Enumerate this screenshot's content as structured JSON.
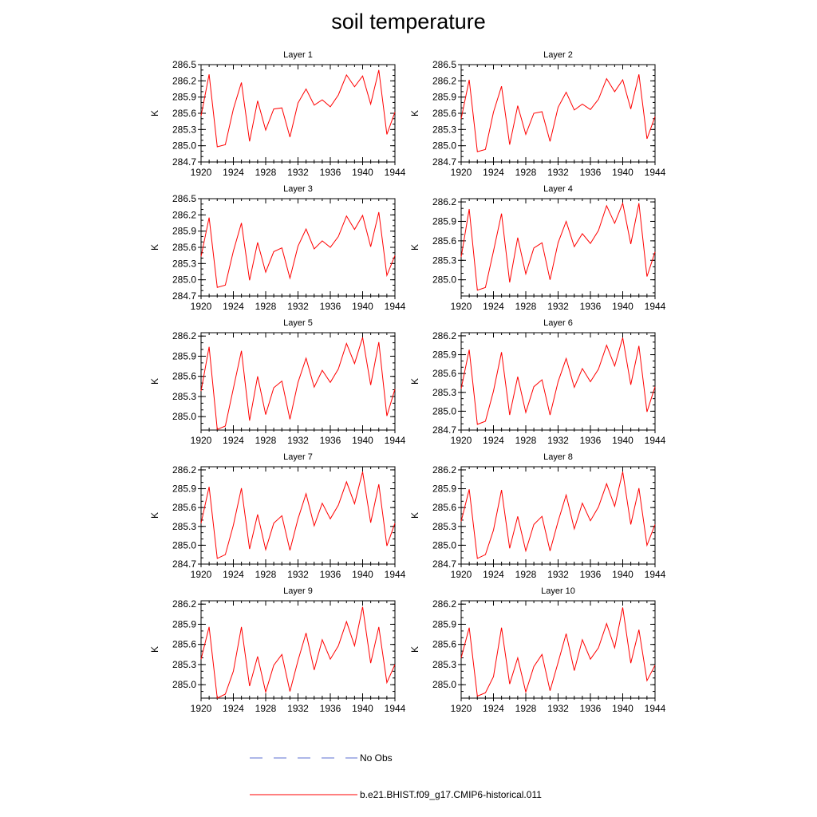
{
  "title": "soil temperature",
  "x_tick_labels": [
    "1920",
    "1924",
    "1928",
    "1932",
    "1936",
    "1940",
    "1944"
  ],
  "legend": {
    "obs_label": "No Obs",
    "model_label": "b.e21.BHIST.f09_g17.CMIP6-historical.011",
    "obs_color": "#5b6fd0",
    "model_color": "#ff0000"
  },
  "chart_data": [
    {
      "type": "line",
      "title": "Layer 1",
      "ylabel": "K",
      "xlim": [
        1920,
        1944
      ],
      "ylim": [
        284.7,
        286.5
      ],
      "yticks": [
        284.7,
        285.0,
        285.3,
        285.6,
        285.9,
        286.2,
        286.5
      ],
      "x": [
        1920,
        1921,
        1922,
        1923,
        1924,
        1925,
        1926,
        1927,
        1928,
        1929,
        1930,
        1931,
        1932,
        1933,
        1934,
        1935,
        1936,
        1937,
        1938,
        1939,
        1940,
        1941,
        1942,
        1943,
        1944
      ],
      "series": [
        {
          "name": "b.e21.BHIST.f09_g17.CMIP6-historical.011",
          "values": [
            285.55,
            286.32,
            284.98,
            285.02,
            285.68,
            286.17,
            285.08,
            285.83,
            285.29,
            285.68,
            285.7,
            285.16,
            285.79,
            286.05,
            285.75,
            285.85,
            285.72,
            285.94,
            286.31,
            286.09,
            286.29,
            285.77,
            286.4,
            285.21,
            285.62
          ]
        }
      ]
    },
    {
      "type": "line",
      "title": "Layer 2",
      "ylabel": "K",
      "xlim": [
        1920,
        1944
      ],
      "ylim": [
        284.7,
        286.5
      ],
      "yticks": [
        284.7,
        285.0,
        285.3,
        285.6,
        285.9,
        286.2,
        286.5
      ],
      "x": [
        1920,
        1921,
        1922,
        1923,
        1924,
        1925,
        1926,
        1927,
        1928,
        1929,
        1930,
        1931,
        1932,
        1933,
        1934,
        1935,
        1936,
        1937,
        1938,
        1939,
        1940,
        1941,
        1942,
        1943,
        1944
      ],
      "series": [
        {
          "name": "b.e21.BHIST.f09_g17.CMIP6-historical.011",
          "values": [
            285.5,
            286.22,
            284.89,
            284.93,
            285.62,
            286.1,
            285.02,
            285.74,
            285.21,
            285.6,
            285.63,
            285.08,
            285.71,
            285.99,
            285.66,
            285.77,
            285.67,
            285.86,
            286.24,
            286.0,
            286.22,
            285.68,
            286.32,
            285.13,
            285.54
          ]
        }
      ]
    },
    {
      "type": "line",
      "title": "Layer 3",
      "ylabel": "K",
      "xlim": [
        1920,
        1944
      ],
      "ylim": [
        284.7,
        286.5
      ],
      "yticks": [
        284.7,
        285.0,
        285.3,
        285.6,
        285.9,
        286.2,
        286.5
      ],
      "x": [
        1920,
        1921,
        1922,
        1923,
        1924,
        1925,
        1926,
        1927,
        1928,
        1929,
        1930,
        1931,
        1932,
        1933,
        1934,
        1935,
        1936,
        1937,
        1938,
        1939,
        1940,
        1941,
        1942,
        1943,
        1944
      ],
      "series": [
        {
          "name": "b.e21.BHIST.f09_g17.CMIP6-historical.011",
          "values": [
            285.43,
            286.15,
            284.86,
            284.9,
            285.53,
            286.05,
            284.99,
            285.69,
            285.14,
            285.52,
            285.59,
            285.03,
            285.62,
            285.94,
            285.57,
            285.72,
            285.6,
            285.8,
            286.18,
            285.93,
            286.19,
            285.61,
            286.25,
            285.08,
            285.45
          ]
        }
      ]
    },
    {
      "type": "line",
      "title": "Layer 4",
      "ylabel": "K",
      "xlim": [
        1920,
        1944
      ],
      "ylim": [
        284.75,
        286.25
      ],
      "yticks": [
        285.0,
        285.3,
        285.6,
        285.9,
        286.2
      ],
      "x": [
        1920,
        1921,
        1922,
        1923,
        1924,
        1925,
        1926,
        1927,
        1928,
        1929,
        1930,
        1931,
        1932,
        1933,
        1934,
        1935,
        1936,
        1937,
        1938,
        1939,
        1940,
        1941,
        1942,
        1943,
        1944
      ],
      "series": [
        {
          "name": "b.e21.BHIST.f09_g17.CMIP6-historical.011",
          "values": [
            285.35,
            286.09,
            284.84,
            284.88,
            285.44,
            286.02,
            284.96,
            285.65,
            285.09,
            285.49,
            285.57,
            285.0,
            285.57,
            285.9,
            285.51,
            285.71,
            285.56,
            285.76,
            286.14,
            285.87,
            286.18,
            285.55,
            286.18,
            285.05,
            285.43
          ]
        }
      ]
    },
    {
      "type": "line",
      "title": "Layer 5",
      "ylabel": "K",
      "xlim": [
        1920,
        1944
      ],
      "ylim": [
        284.8,
        286.25
      ],
      "yticks": [
        285.0,
        285.3,
        285.6,
        285.9,
        286.2
      ],
      "x": [
        1920,
        1921,
        1922,
        1923,
        1924,
        1925,
        1926,
        1927,
        1928,
        1929,
        1930,
        1931,
        1932,
        1933,
        1934,
        1935,
        1936,
        1937,
        1938,
        1939,
        1940,
        1941,
        1942,
        1943,
        1944
      ],
      "series": [
        {
          "name": "b.e21.BHIST.f09_g17.CMIP6-historical.011",
          "values": [
            285.38,
            286.04,
            284.81,
            284.86,
            285.42,
            285.98,
            284.94,
            285.6,
            285.03,
            285.43,
            285.53,
            284.96,
            285.51,
            285.87,
            285.44,
            285.69,
            285.51,
            285.71,
            286.09,
            285.79,
            286.18,
            285.47,
            286.11,
            285.01,
            285.41
          ]
        }
      ]
    },
    {
      "type": "line",
      "title": "Layer 6",
      "ylabel": "K",
      "xlim": [
        1920,
        1944
      ],
      "ylim": [
        284.7,
        286.25
      ],
      "yticks": [
        284.7,
        285.0,
        285.3,
        285.6,
        285.9,
        286.2
      ],
      "x": [
        1920,
        1921,
        1922,
        1923,
        1924,
        1925,
        1926,
        1927,
        1928,
        1929,
        1930,
        1931,
        1932,
        1933,
        1934,
        1935,
        1936,
        1937,
        1938,
        1939,
        1940,
        1941,
        1942,
        1943,
        1944
      ],
      "series": [
        {
          "name": "b.e21.BHIST.f09_g17.CMIP6-historical.011",
          "values": [
            285.36,
            285.98,
            284.79,
            284.84,
            285.32,
            285.94,
            284.94,
            285.55,
            284.98,
            285.39,
            285.5,
            284.94,
            285.47,
            285.84,
            285.38,
            285.68,
            285.47,
            285.67,
            286.05,
            285.72,
            286.17,
            285.42,
            286.04,
            284.99,
            285.39
          ]
        }
      ]
    },
    {
      "type": "line",
      "title": "Layer 7",
      "ylabel": "K",
      "xlim": [
        1920,
        1944
      ],
      "ylim": [
        284.7,
        286.25
      ],
      "yticks": [
        284.7,
        285.0,
        285.3,
        285.6,
        285.9,
        286.2
      ],
      "x": [
        1920,
        1921,
        1922,
        1923,
        1924,
        1925,
        1926,
        1927,
        1928,
        1929,
        1930,
        1931,
        1932,
        1933,
        1934,
        1935,
        1936,
        1937,
        1938,
        1939,
        1940,
        1941,
        1942,
        1943,
        1944
      ],
      "series": [
        {
          "name": "b.e21.BHIST.f09_g17.CMIP6-historical.011",
          "values": [
            285.35,
            285.93,
            284.79,
            284.85,
            285.32,
            285.91,
            284.94,
            285.49,
            284.93,
            285.35,
            285.47,
            284.92,
            285.42,
            285.82,
            285.31,
            285.67,
            285.42,
            285.64,
            286.01,
            285.66,
            286.17,
            285.36,
            285.97,
            284.99,
            285.35
          ]
        }
      ]
    },
    {
      "type": "line",
      "title": "Layer 8",
      "ylabel": "K",
      "xlim": [
        1920,
        1944
      ],
      "ylim": [
        284.7,
        286.25
      ],
      "yticks": [
        284.7,
        285.0,
        285.3,
        285.6,
        285.9,
        286.2
      ],
      "x": [
        1920,
        1921,
        1922,
        1923,
        1924,
        1925,
        1926,
        1927,
        1928,
        1929,
        1930,
        1931,
        1932,
        1933,
        1934,
        1935,
        1936,
        1937,
        1938,
        1939,
        1940,
        1941,
        1942,
        1943,
        1944
      ],
      "series": [
        {
          "name": "b.e21.BHIST.f09_g17.CMIP6-historical.011",
          "values": [
            285.38,
            285.89,
            284.79,
            284.85,
            285.24,
            285.88,
            284.95,
            285.46,
            284.91,
            285.33,
            285.46,
            284.91,
            285.38,
            285.8,
            285.26,
            285.67,
            285.39,
            285.61,
            285.98,
            285.62,
            286.17,
            285.33,
            285.91,
            285.0,
            285.33
          ]
        }
      ]
    },
    {
      "type": "line",
      "title": "Layer 9",
      "ylabel": "K",
      "xlim": [
        1920,
        1944
      ],
      "ylim": [
        284.8,
        286.25
      ],
      "yticks": [
        285.0,
        285.3,
        285.6,
        285.9,
        286.2
      ],
      "x": [
        1920,
        1921,
        1922,
        1923,
        1924,
        1925,
        1926,
        1927,
        1928,
        1929,
        1930,
        1931,
        1932,
        1933,
        1934,
        1935,
        1936,
        1937,
        1938,
        1939,
        1940,
        1941,
        1942,
        1943,
        1944
      ],
      "series": [
        {
          "name": "b.e21.BHIST.f09_g17.CMIP6-historical.011",
          "values": [
            285.38,
            285.86,
            284.8,
            284.86,
            285.2,
            285.86,
            284.98,
            285.42,
            284.89,
            285.29,
            285.45,
            284.9,
            285.36,
            285.77,
            285.22,
            285.67,
            285.38,
            285.58,
            285.94,
            285.58,
            286.16,
            285.32,
            285.86,
            285.03,
            285.3
          ]
        }
      ]
    },
    {
      "type": "line",
      "title": "Layer 10",
      "ylabel": "K",
      "xlim": [
        1920,
        1944
      ],
      "ylim": [
        284.8,
        286.25
      ],
      "yticks": [
        285.0,
        285.3,
        285.6,
        285.9,
        286.2
      ],
      "x": [
        1920,
        1921,
        1922,
        1923,
        1924,
        1925,
        1926,
        1927,
        1928,
        1929,
        1930,
        1931,
        1932,
        1933,
        1934,
        1935,
        1936,
        1937,
        1938,
        1939,
        1940,
        1941,
        1942,
        1943,
        1944
      ],
      "series": [
        {
          "name": "b.e21.BHIST.f09_g17.CMIP6-historical.011",
          "values": [
            285.4,
            285.85,
            284.83,
            284.88,
            285.12,
            285.85,
            285.01,
            285.4,
            284.89,
            285.27,
            285.45,
            284.91,
            285.33,
            285.76,
            285.21,
            285.67,
            285.38,
            285.55,
            285.91,
            285.55,
            286.15,
            285.32,
            285.82,
            285.06,
            285.29
          ]
        }
      ]
    }
  ]
}
